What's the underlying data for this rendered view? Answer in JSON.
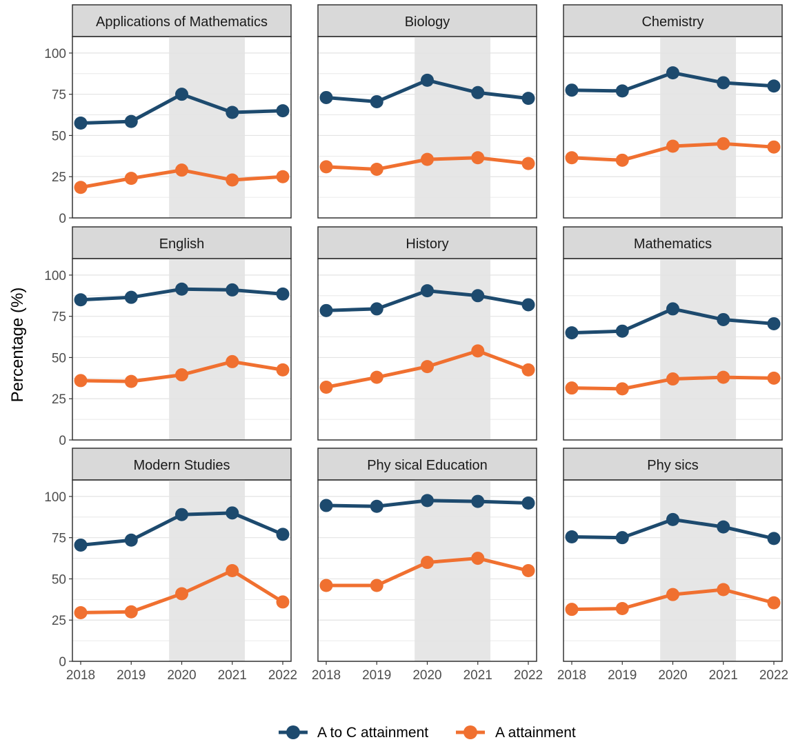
{
  "chart_data": {
    "type": "line",
    "layout": "facet-grid-3x3",
    "ylabel": "Percentage (%)",
    "xlabel": "",
    "ylim": [
      0,
      100
    ],
    "yticks": [
      0,
      25,
      50,
      75,
      100
    ],
    "x": [
      2018,
      2019,
      2020,
      2021,
      2022
    ],
    "x_labels": [
      "2018",
      "2019",
      "2020",
      "2021",
      "2022"
    ],
    "y_labels": [
      "0",
      "25",
      "50",
      "75",
      "100"
    ],
    "highlight_x_range": [
      2020,
      2021
    ],
    "grid": true,
    "legend_position": "bottom",
    "series_colors": {
      "a_to_c": "#1d4a6e",
      "a": "#f07030"
    },
    "legend": [
      {
        "key": "a_to_c",
        "label": "A to C attainment"
      },
      {
        "key": "a",
        "label": "A attainment"
      }
    ],
    "panels": [
      {
        "title": "Applications of Mathematics",
        "series": [
          {
            "key": "a_to_c",
            "name": "A to C attainment",
            "values": [
              57.5,
              58.5,
              75.0,
              64.0,
              65.0
            ]
          },
          {
            "key": "a",
            "name": "A attainment",
            "values": [
              18.5,
              24.0,
              29.0,
              23.0,
              25.0
            ]
          }
        ]
      },
      {
        "title": "Biology",
        "series": [
          {
            "key": "a_to_c",
            "name": "A to C attainment",
            "values": [
              73.0,
              70.5,
              83.5,
              76.0,
              72.5
            ]
          },
          {
            "key": "a",
            "name": "A attainment",
            "values": [
              31.0,
              29.5,
              35.5,
              36.5,
              33.0
            ]
          }
        ]
      },
      {
        "title": "Chemistry",
        "series": [
          {
            "key": "a_to_c",
            "name": "A to C attainment",
            "values": [
              77.5,
              77.0,
              88.0,
              82.0,
              80.0
            ]
          },
          {
            "key": "a",
            "name": "A attainment",
            "values": [
              36.5,
              35.0,
              43.5,
              45.0,
              43.0
            ]
          }
        ]
      },
      {
        "title": "English",
        "series": [
          {
            "key": "a_to_c",
            "name": "A to C attainment",
            "values": [
              85.0,
              86.5,
              91.5,
              91.0,
              88.5
            ]
          },
          {
            "key": "a",
            "name": "A attainment",
            "values": [
              36.0,
              35.5,
              39.5,
              47.5,
              42.5
            ]
          }
        ]
      },
      {
        "title": "History",
        "series": [
          {
            "key": "a_to_c",
            "name": "A to C attainment",
            "values": [
              78.5,
              79.5,
              90.5,
              87.5,
              82.0
            ]
          },
          {
            "key": "a",
            "name": "A attainment",
            "values": [
              32.0,
              38.0,
              44.5,
              54.0,
              42.5
            ]
          }
        ]
      },
      {
        "title": "Mathematics",
        "series": [
          {
            "key": "a_to_c",
            "name": "A to C attainment",
            "values": [
              65.0,
              66.0,
              79.5,
              73.0,
              70.5
            ]
          },
          {
            "key": "a",
            "name": "A attainment",
            "values": [
              31.5,
              31.0,
              37.0,
              38.0,
              37.5
            ]
          }
        ]
      },
      {
        "title": "Modern Studies",
        "series": [
          {
            "key": "a_to_c",
            "name": "A to C attainment",
            "values": [
              70.5,
              73.5,
              89.0,
              90.0,
              77.0
            ]
          },
          {
            "key": "a",
            "name": "A attainment",
            "values": [
              29.5,
              30.0,
              41.0,
              55.0,
              36.0
            ]
          }
        ]
      },
      {
        "title": "Phy sical Education",
        "series": [
          {
            "key": "a_to_c",
            "name": "A to C attainment",
            "values": [
              94.5,
              94.0,
              97.5,
              97.0,
              96.0
            ]
          },
          {
            "key": "a",
            "name": "A attainment",
            "values": [
              46.0,
              46.0,
              60.0,
              62.5,
              55.0
            ]
          }
        ]
      },
      {
        "title": "Phy sics",
        "series": [
          {
            "key": "a_to_c",
            "name": "A to C attainment",
            "values": [
              75.5,
              75.0,
              86.0,
              81.5,
              74.5
            ]
          },
          {
            "key": "a",
            "name": "A attainment",
            "values": [
              31.5,
              32.0,
              40.5,
              43.5,
              35.5
            ]
          }
        ]
      }
    ]
  }
}
